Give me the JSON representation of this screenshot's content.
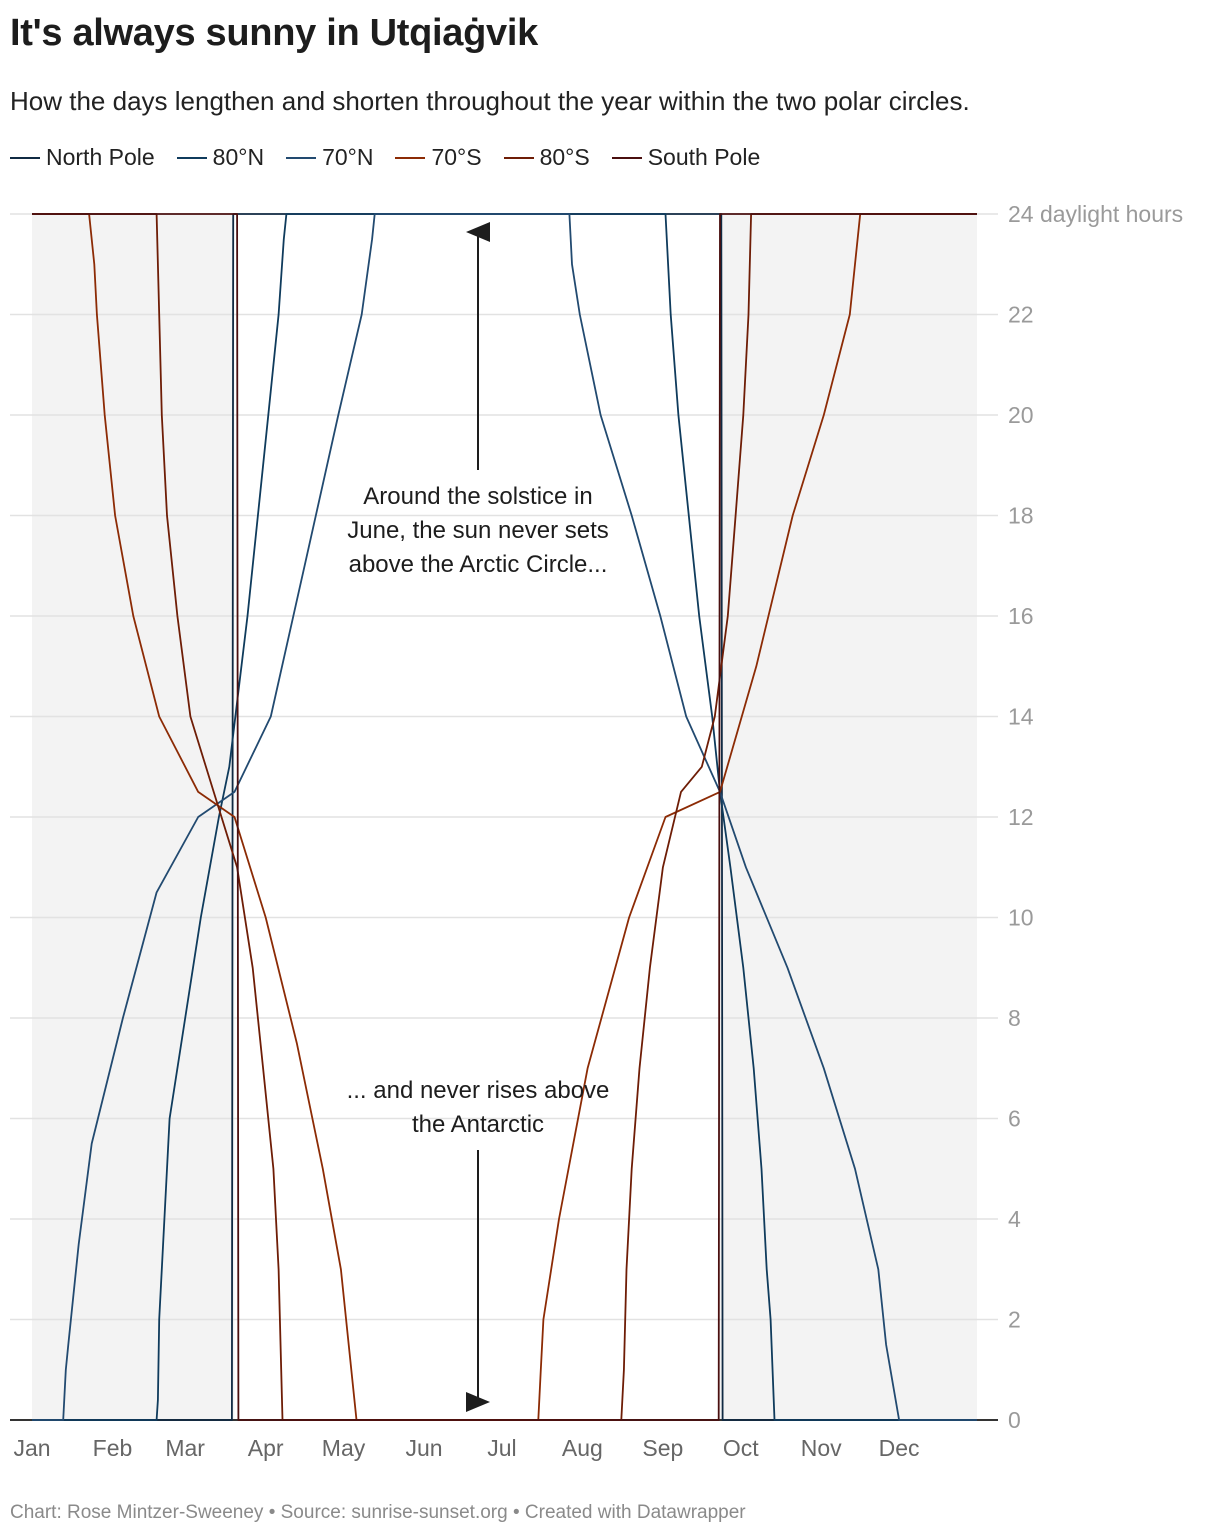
{
  "header": {
    "title": "It's always sunny in Utqiaġvik",
    "subtitle": "How the days lengthen and shorten throughout the year within the two polar circles."
  },
  "footer": {
    "credit": "Chart: Rose Mintzer-Sweeney • Source: sunrise-sunset.org • Created with Datawrapper"
  },
  "annotations": {
    "top": "Around the solstice in June, the sun never sets above the Arctic Circle...",
    "bottom": "... and never rises above the Antarctic"
  },
  "chart_data": {
    "type": "line",
    "title": "It's always sunny in Utqiaġvik",
    "x_unit": "day of year",
    "xlim": [
      1,
      365
    ],
    "ylim": [
      0,
      24
    ],
    "y_top_label": "24 daylight hours",
    "y_ticks": [
      0,
      2,
      4,
      6,
      8,
      10,
      12,
      14,
      16,
      18,
      20,
      22,
      24
    ],
    "month_labels": [
      "Jan",
      "Feb",
      "Mar",
      "Apr",
      "May",
      "Jun",
      "Jul",
      "Aug",
      "Sep",
      "Oct",
      "Nov",
      "Dec"
    ],
    "month_start_days": [
      1,
      32,
      60,
      91,
      121,
      152,
      182,
      213,
      244,
      274,
      305,
      335
    ],
    "shaded_ranges": [
      [
        1,
        79
      ],
      [
        266,
        365
      ]
    ],
    "legend_position": "top-left",
    "grid": true,
    "series": [
      {
        "name": "North Pole",
        "color": "#102a43",
        "points": [
          [
            1,
            0
          ],
          [
            78,
            0
          ],
          [
            78.5,
            24
          ],
          [
            266.5,
            24
          ],
          [
            267,
            0
          ],
          [
            365,
            0
          ]
        ]
      },
      {
        "name": "80°N",
        "color": "#0f3b5c",
        "points": [
          [
            1,
            0
          ],
          [
            49,
            0
          ],
          [
            49.5,
            0.4
          ],
          [
            50,
            2
          ],
          [
            52,
            4
          ],
          [
            54,
            6
          ],
          [
            60,
            8
          ],
          [
            66,
            10
          ],
          [
            73,
            12
          ],
          [
            77,
            13
          ],
          [
            84,
            16
          ],
          [
            88,
            18
          ],
          [
            92,
            20
          ],
          [
            96,
            22
          ],
          [
            98,
            23.5
          ],
          [
            99,
            24
          ],
          [
            245,
            24
          ],
          [
            246,
            23
          ],
          [
            247,
            22
          ],
          [
            250,
            20
          ],
          [
            254,
            18
          ],
          [
            258,
            16
          ],
          [
            263,
            14
          ],
          [
            266,
            12.5
          ],
          [
            270,
            11
          ],
          [
            275,
            9
          ],
          [
            279,
            7
          ],
          [
            282,
            5
          ],
          [
            284,
            3
          ],
          [
            285.5,
            2
          ],
          [
            287,
            0
          ],
          [
            365,
            0
          ]
        ]
      },
      {
        "name": "70°N",
        "color": "#224a70",
        "points": [
          [
            1,
            0
          ],
          [
            13,
            0
          ],
          [
            14,
            1
          ],
          [
            15,
            1.5
          ],
          [
            19,
            3.5
          ],
          [
            24,
            5.5
          ],
          [
            36,
            8
          ],
          [
            49,
            10.5
          ],
          [
            65,
            12
          ],
          [
            79,
            12.5
          ],
          [
            93,
            14
          ],
          [
            106,
            17
          ],
          [
            119,
            20
          ],
          [
            128,
            22
          ],
          [
            132,
            23.5
          ],
          [
            133,
            24
          ],
          [
            208,
            24
          ],
          [
            209,
            23
          ],
          [
            212,
            22
          ],
          [
            220,
            20
          ],
          [
            232,
            18
          ],
          [
            243,
            16
          ],
          [
            253,
            14
          ],
          [
            266,
            12.5
          ],
          [
            276,
            11
          ],
          [
            292,
            9
          ],
          [
            306,
            7
          ],
          [
            318,
            5
          ],
          [
            327,
            3
          ],
          [
            330,
            1.5
          ],
          [
            335,
            0
          ],
          [
            365,
            0
          ]
        ]
      },
      {
        "name": "70°S",
        "color": "#8c2b05",
        "points": [
          [
            1,
            24
          ],
          [
            23,
            24
          ],
          [
            25,
            23
          ],
          [
            26,
            22
          ],
          [
            29,
            20
          ],
          [
            33,
            18
          ],
          [
            40,
            16
          ],
          [
            50,
            14
          ],
          [
            65,
            12.5
          ],
          [
            79,
            12
          ],
          [
            91,
            10
          ],
          [
            103,
            7.5
          ],
          [
            113,
            5
          ],
          [
            120,
            3
          ],
          [
            123,
            1.5
          ],
          [
            126,
            0
          ],
          [
            196,
            0
          ],
          [
            197,
            1
          ],
          [
            198,
            2
          ],
          [
            204,
            4
          ],
          [
            215,
            7
          ],
          [
            231,
            10
          ],
          [
            245,
            12
          ],
          [
            266,
            12.5
          ],
          [
            280,
            15
          ],
          [
            294,
            18
          ],
          [
            306,
            20
          ],
          [
            316,
            22
          ],
          [
            319,
            23.5
          ],
          [
            320,
            24
          ],
          [
            365,
            24
          ]
        ]
      },
      {
        "name": "80°S",
        "color": "#6e1d06",
        "points": [
          [
            1,
            24
          ],
          [
            49,
            24
          ],
          [
            50,
            22
          ],
          [
            51,
            20
          ],
          [
            53,
            18
          ],
          [
            57,
            16
          ],
          [
            62,
            14
          ],
          [
            71,
            12.5
          ],
          [
            80,
            11
          ],
          [
            86,
            9
          ],
          [
            90,
            7
          ],
          [
            94,
            5
          ],
          [
            96,
            3
          ],
          [
            97,
            1
          ],
          [
            97.5,
            0
          ],
          [
            228,
            0
          ],
          [
            229,
            1
          ],
          [
            230,
            3
          ],
          [
            232,
            5
          ],
          [
            235,
            7
          ],
          [
            239,
            9
          ],
          [
            244,
            11
          ],
          [
            251,
            12.5
          ],
          [
            259,
            13
          ],
          [
            264,
            14
          ],
          [
            269,
            16
          ],
          [
            272,
            18
          ],
          [
            275,
            20
          ],
          [
            277,
            22
          ],
          [
            278,
            24
          ],
          [
            365,
            24
          ]
        ]
      },
      {
        "name": "South Pole",
        "color": "#4a0f0f",
        "points": [
          [
            1,
            24
          ],
          [
            80,
            24
          ],
          [
            80.5,
            0
          ],
          [
            265.5,
            0
          ],
          [
            266,
            24
          ],
          [
            365,
            24
          ]
        ]
      }
    ]
  }
}
